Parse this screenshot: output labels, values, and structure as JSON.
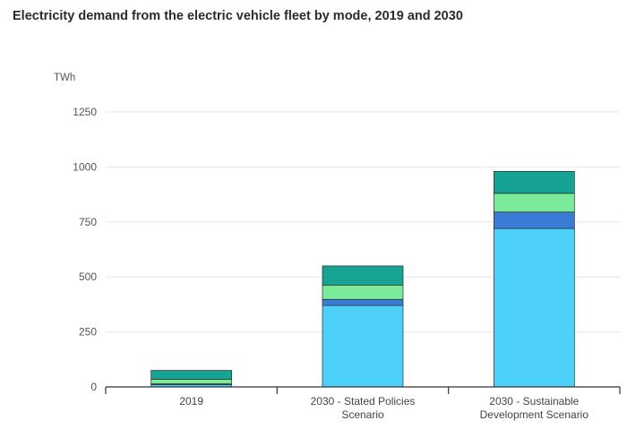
{
  "chart_data": {
    "type": "bar",
    "stacked": true,
    "title": "Electricity demand from the electric vehicle fleet by mode, 2019 and 2030",
    "ylabel": "TWh",
    "ylim": [
      0,
      1250
    ],
    "yticks": [
      0,
      250,
      500,
      750,
      1000,
      1250
    ],
    "grid": true,
    "legend": "none",
    "categories": [
      [
        "2019"
      ],
      [
        "2030 - Stated Policies",
        "Scenario"
      ],
      [
        "2030 - Sustainable",
        "Development Scenario"
      ]
    ],
    "series": [
      {
        "values": [
          10,
          370,
          720
        ],
        "color": "#4dd0fa"
      },
      {
        "values": [
          4,
          28,
          75
        ],
        "color": "#3a7bd5"
      },
      {
        "values": [
          21,
          65,
          85
        ],
        "color": "#7beb9a"
      },
      {
        "values": [
          40,
          87,
          100
        ],
        "color": "#16a394"
      }
    ]
  }
}
